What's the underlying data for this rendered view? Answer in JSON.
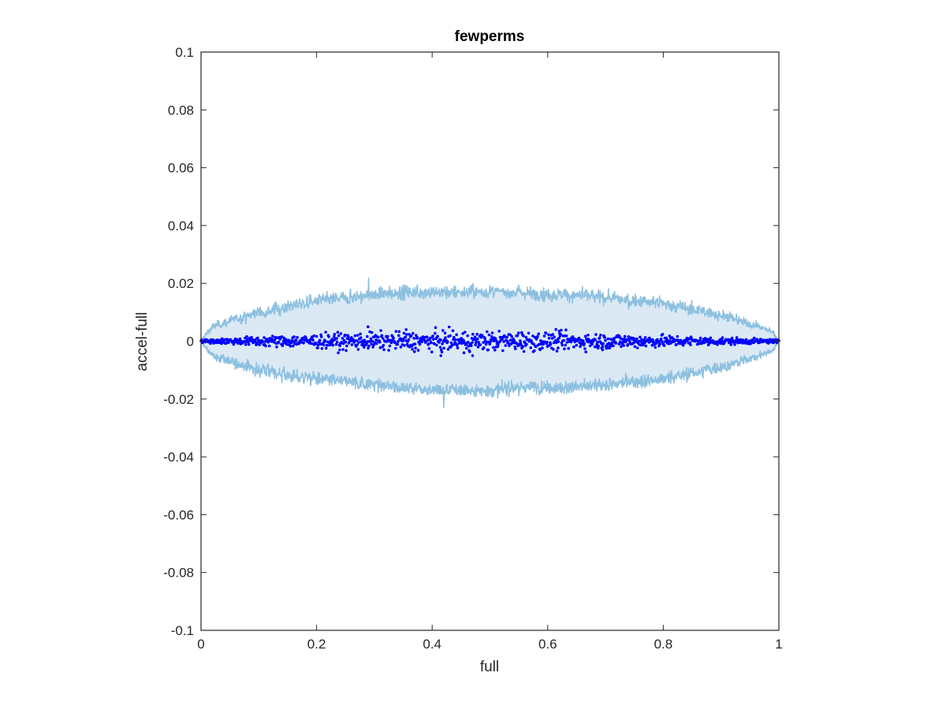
{
  "chart_data": {
    "type": "scatter",
    "title": "fewperms",
    "xlabel": "full",
    "ylabel": "accel-full",
    "xlim": [
      0,
      1
    ],
    "ylim": [
      -0.1,
      0.1
    ],
    "x_ticks": [
      "0",
      "0.2",
      "0.4",
      "0.6",
      "0.8",
      "1"
    ],
    "y_ticks": [
      "0.1",
      "0.08",
      "0.06",
      "0.04",
      "0.02",
      "0",
      "-0.02",
      "-0.04",
      "-0.06",
      "-0.08",
      "-0.1"
    ],
    "grid": false,
    "legend": "none",
    "band": {
      "x": [
        0,
        0.01,
        0.02,
        0.05,
        0.1,
        0.15,
        0.2,
        0.25,
        0.3,
        0.35,
        0.4,
        0.45,
        0.5,
        0.55,
        0.6,
        0.65,
        0.7,
        0.75,
        0.8,
        0.85,
        0.9,
        0.95,
        0.98,
        0.99,
        1
      ],
      "upper": [
        0,
        0.003,
        0.005,
        0.007,
        0.01,
        0.012,
        0.014,
        0.015,
        0.016,
        0.017,
        0.017,
        0.017,
        0.017,
        0.017,
        0.016,
        0.016,
        0.015,
        0.014,
        0.013,
        0.011,
        0.009,
        0.006,
        0.004,
        0.003,
        0
      ],
      "lower": [
        0,
        -0.003,
        -0.005,
        -0.007,
        -0.01,
        -0.012,
        -0.013,
        -0.014,
        -0.015,
        -0.016,
        -0.017,
        -0.017,
        -0.017,
        -0.016,
        -0.016,
        -0.016,
        -0.015,
        -0.014,
        -0.013,
        -0.011,
        -0.009,
        -0.006,
        -0.004,
        -0.003,
        0
      ],
      "spikes": [
        {
          "x": 0.29,
          "y": 0.022
        },
        {
          "x": 0.42,
          "y": -0.023
        },
        {
          "x": 0.66,
          "y": 0.019
        },
        {
          "x": 0.55,
          "y": -0.019
        }
      ]
    },
    "points_note_amplitude": [
      {
        "x": 0.0,
        "a": 0.0005
      },
      {
        "x": 0.1,
        "a": 0.0015
      },
      {
        "x": 0.25,
        "a": 0.0025
      },
      {
        "x": 0.4,
        "a": 0.003
      },
      {
        "x": 0.5,
        "a": 0.003
      },
      {
        "x": 0.6,
        "a": 0.0028
      },
      {
        "x": 0.75,
        "a": 0.0022
      },
      {
        "x": 0.9,
        "a": 0.0012
      },
      {
        "x": 1.0,
        "a": 0.0005
      }
    ],
    "outliers": [
      {
        "x": 0.289,
        "y": 0.005
      },
      {
        "x": 0.355,
        "y": 0.004
      },
      {
        "x": 0.415,
        "y": -0.005
      },
      {
        "x": 0.455,
        "y": -0.004
      },
      {
        "x": 0.47,
        "y": -0.005
      },
      {
        "x": 0.24,
        "y": -0.003
      },
      {
        "x": 0.695,
        "y": -0.003
      },
      {
        "x": 0.555,
        "y": 0.003
      },
      {
        "x": 0.62,
        "y": 0.0035
      }
    ],
    "colors": {
      "band_fill": "#dbe9f5",
      "band_edge": "#8dc0e0",
      "points": "#0000ff",
      "axes": "#262626"
    }
  }
}
